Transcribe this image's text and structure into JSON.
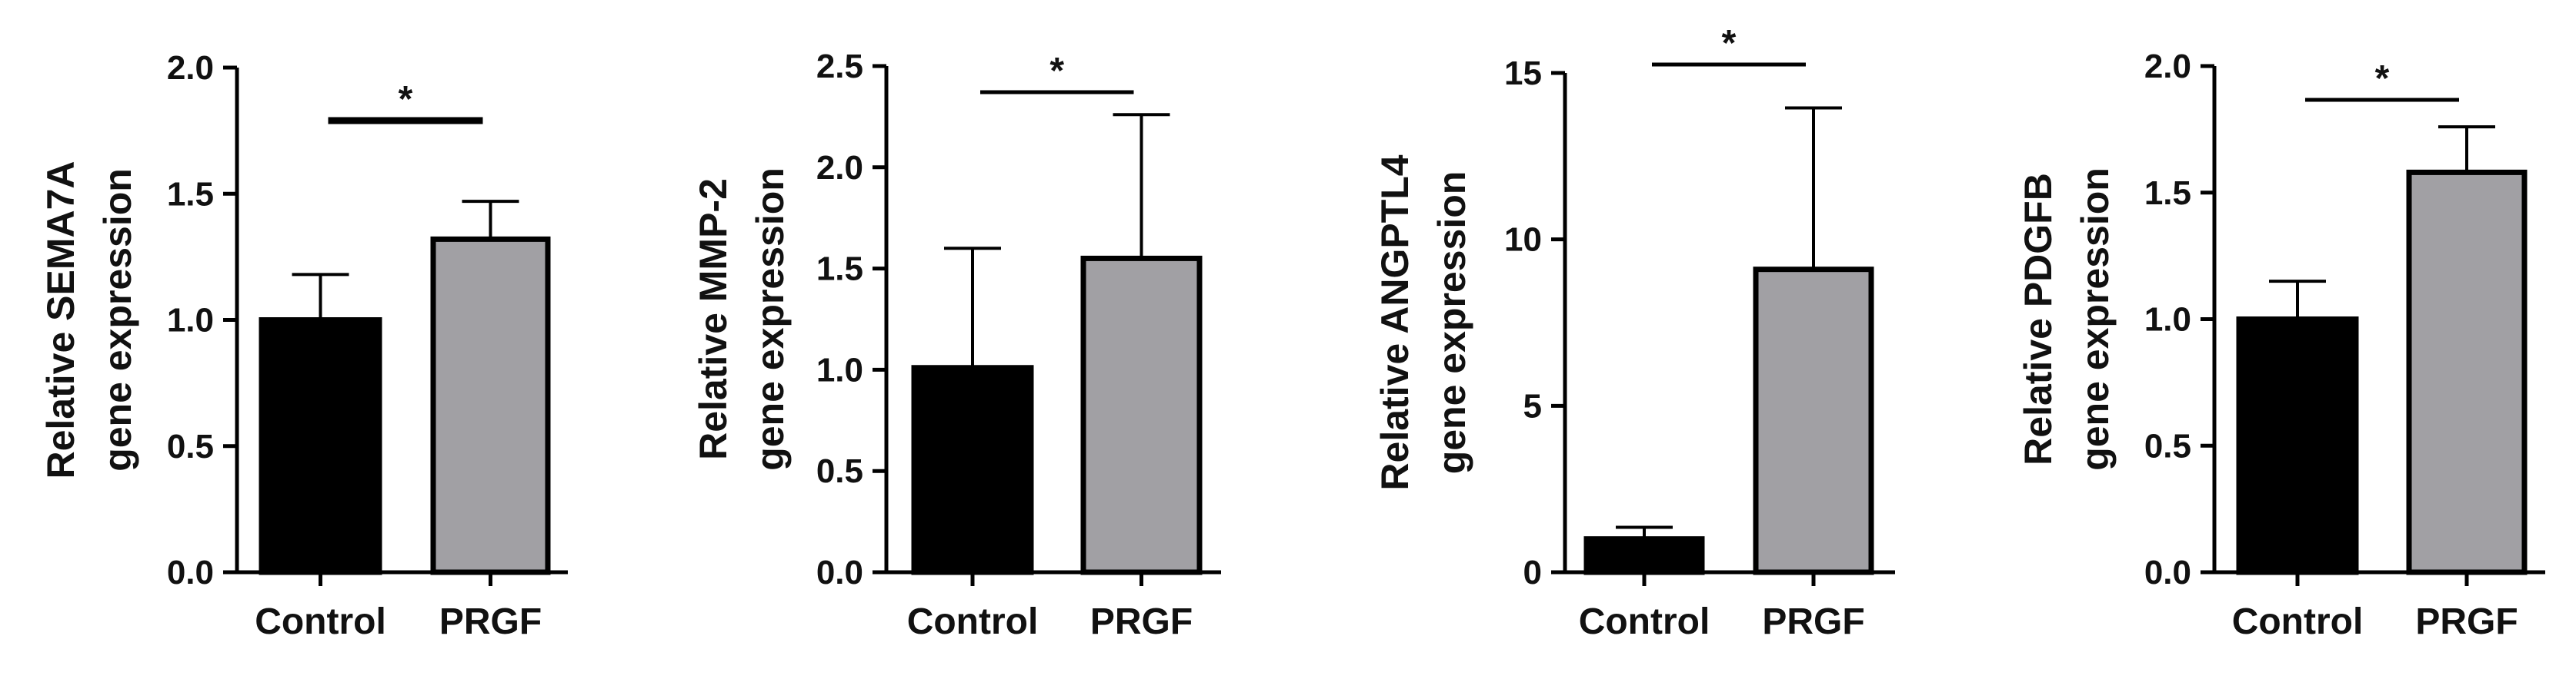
{
  "chart_data": [
    {
      "type": "bar",
      "categories": [
        "Control",
        "PRGF"
      ],
      "values": [
        1.0,
        1.32
      ],
      "errors": [
        0.18,
        0.15
      ],
      "ylabel": [
        "Relative SEMA7A",
        "gene expression"
      ],
      "ylim": [
        0,
        2.0
      ],
      "yticks": [
        "0.0",
        "0.5",
        "1.0",
        "1.5",
        "2.0"
      ],
      "significance": "*",
      "colors": [
        "#000000",
        "#a1a0a4"
      ]
    },
    {
      "type": "bar",
      "categories": [
        "Control",
        "PRGF"
      ],
      "values": [
        1.01,
        1.55
      ],
      "errors": [
        0.59,
        0.71
      ],
      "ylabel": [
        "Relative MMP-2",
        "gene expression"
      ],
      "ylim": [
        0,
        2.5
      ],
      "yticks": [
        "0.0",
        "0.5",
        "1.0",
        "1.5",
        "2.0",
        "2.5"
      ],
      "significance": "*",
      "colors": [
        "#000000",
        "#a1a0a4"
      ]
    },
    {
      "type": "bar",
      "categories": [
        "Control",
        "PRGF"
      ],
      "values": [
        1.0,
        9.1
      ],
      "errors": [
        0.35,
        4.85
      ],
      "ylabel": [
        "Relative ANGPTL4",
        "gene expression"
      ],
      "ylim": [
        0,
        15
      ],
      "yticks": [
        "0",
        "5",
        "10",
        "15"
      ],
      "significance": "*",
      "colors": [
        "#000000",
        "#a1a0a4"
      ]
    },
    {
      "type": "bar",
      "categories": [
        "Control",
        "PRGF"
      ],
      "values": [
        1.0,
        1.58
      ],
      "errors": [
        0.15,
        0.18
      ],
      "ylabel": [
        "Relative PDGFB",
        "gene expression"
      ],
      "ylim": [
        0,
        2.0
      ],
      "yticks": [
        "0.0",
        "0.5",
        "1.0",
        "1.5",
        "2.0"
      ],
      "significance": "*",
      "colors": [
        "#000000",
        "#a1a0a4"
      ]
    }
  ]
}
